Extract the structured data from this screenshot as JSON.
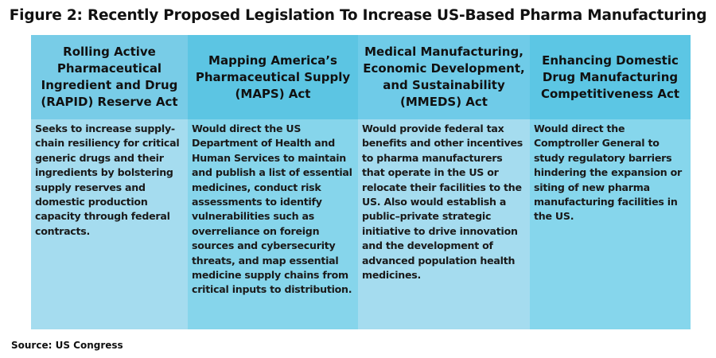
{
  "title": "Figure 2: Recently Proposed Legislation To Increase US-Based Pharma Manufacturing",
  "columns": [
    {
      "header": "Rolling Active Pharmaceutical Ingredient and Drug (RAPID) Reserve Act",
      "description": "Seeks to increase supply-chain resiliency for critical generic drugs and their ingredients by bolstering supply reserves and domestic production capacity through federal contracts."
    },
    {
      "header": "Mapping America’s Pharmaceutical Supply (MAPS) Act",
      "description": "Would direct the US Department of Health and Human Services to maintain and publish a list of essential medicines, conduct risk assessments to identify vulnerabilities such as overreliance on foreign sources and cybersecurity threats, and map essential medicine supply chains from critical inputs to distribution."
    },
    {
      "header": "Medical Manufacturing, Economic Development, and Sustainability (MMEDS) Act",
      "description": "Would provide federal tax benefits and other incentives to pharma manufacturers that operate in the US or relocate their facilities to the US. Also would establish a public–private strategic initiative to drive innovation and the development of advanced population health medicines."
    },
    {
      "header": "Enhancing Domestic Drug Manufacturing Competitiveness Act",
      "description": "Would direct the Comptroller General to study regulatory barriers hindering the expansion or siting of new pharma manufacturing facilities in the US."
    }
  ],
  "source": "Source: US Congress"
}
